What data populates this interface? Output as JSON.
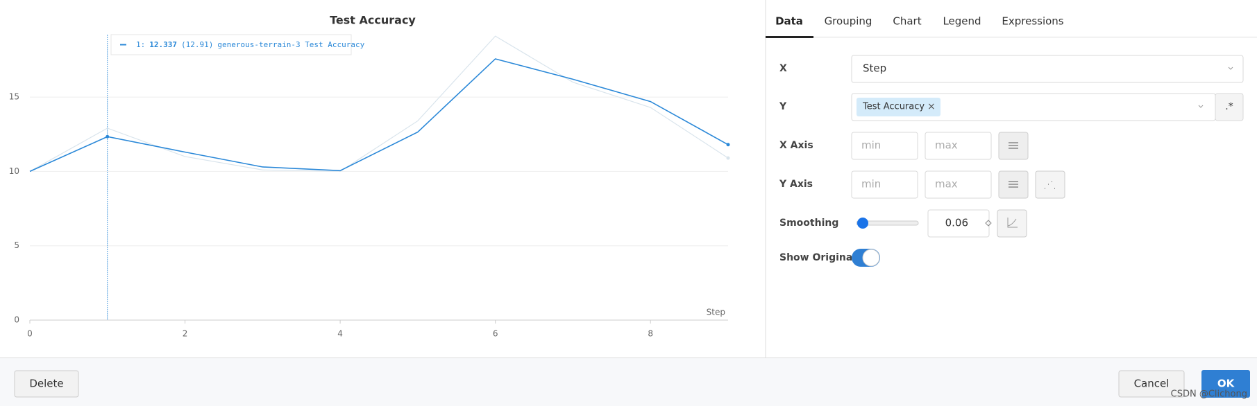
{
  "chart_data": {
    "type": "line",
    "title": "Test Accuracy",
    "x_label": "Step",
    "x": [
      0,
      1,
      2,
      3,
      4,
      5,
      6,
      7,
      8,
      9
    ],
    "series": [
      {
        "name": "generous-terrain-3 Test Accuracy",
        "color": "#2a88d8",
        "values": [
          10.0,
          12.337,
          11.3,
          10.3,
          10.05,
          12.65,
          17.57,
          16.2,
          14.7,
          11.8
        ]
      },
      {
        "color": "#d9e4ec",
        "values": [
          10.0,
          12.91,
          11.0,
          10.1,
          10.0,
          13.4,
          19.1,
          16.0,
          14.3,
          10.9
        ]
      }
    ],
    "xlim": [
      0,
      9
    ],
    "xticks": [
      0,
      2,
      4,
      6,
      8
    ],
    "ylim": [
      0,
      19.2
    ],
    "yticks": [
      0,
      5,
      10,
      15
    ],
    "grid": true,
    "tooltip": {
      "step": "1:",
      "value": "12.337",
      "original": "(12.91)"
    }
  },
  "tabs": [
    "Data",
    "Grouping",
    "Chart",
    "Legend",
    "Expressions"
  ],
  "fields": {
    "x": {
      "label": "X",
      "value": "Step"
    },
    "y": {
      "label": "Y",
      "tag": "Test Accuracy",
      "remove": "×",
      "regex": ".*"
    },
    "x_axis": {
      "label": "X Axis",
      "min": "min",
      "max": "max"
    },
    "y_axis": {
      "label": "Y Axis",
      "min": "min",
      "max": "max"
    },
    "smoothing": {
      "label": "Smoothing",
      "value": "0.06"
    },
    "show_original": {
      "label": "Show Original"
    }
  },
  "footer": {
    "delete": "Delete",
    "cancel": "Cancel",
    "ok": "OK"
  },
  "watermark": "CSDN @Clichong"
}
